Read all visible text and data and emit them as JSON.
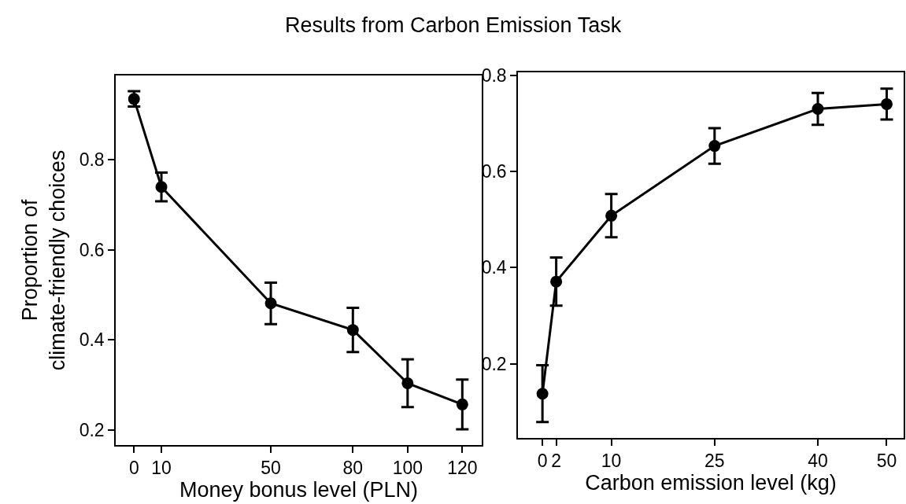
{
  "chart_data": [
    {
      "type": "line",
      "title": "Results from Carbon Emission Task",
      "xlabel": "Money bonus level (PLN)",
      "ylabel": "Proportion of\nclimate-friendly choices",
      "x": [
        0,
        10,
        50,
        80,
        100,
        120
      ],
      "series": [
        {
          "color": "#000000",
          "values": [
            0.934,
            0.739,
            0.481,
            0.422,
            0.304,
            0.257
          ],
          "errors": [
            0.017,
            0.032,
            0.046,
            0.049,
            0.053,
            0.055
          ]
        }
      ],
      "xlim": [
        -6.7,
        127.1
      ],
      "xticks": [
        0,
        10,
        50,
        80,
        100,
        120
      ],
      "ylim": [
        0.167,
        0.986
      ],
      "yticks": [
        0.2,
        0.4,
        0.6,
        0.8
      ],
      "marker": "circle",
      "line_style": "solid"
    },
    {
      "type": "line",
      "xlabel": "Carbon emission level (kg)",
      "x": [
        0,
        2,
        10,
        25,
        40,
        50
      ],
      "series": [
        {
          "color": "#000000",
          "values": [
            0.138,
            0.371,
            0.508,
            0.653,
            0.73,
            0.74
          ],
          "errors": [
            0.059,
            0.05,
            0.045,
            0.037,
            0.033,
            0.032
          ]
        }
      ],
      "xlim": [
        -3.56,
        52.46
      ],
      "xticks": [
        {
          "value": 0,
          "label": "0"
        },
        {
          "value": 2,
          "label": "2"
        },
        10,
        25,
        40,
        50
      ],
      "ylim": [
        0.046,
        0.806
      ],
      "yticks": [
        0.2,
        0.4,
        0.6,
        0.8
      ],
      "marker": "circle",
      "line_style": "solid"
    }
  ]
}
